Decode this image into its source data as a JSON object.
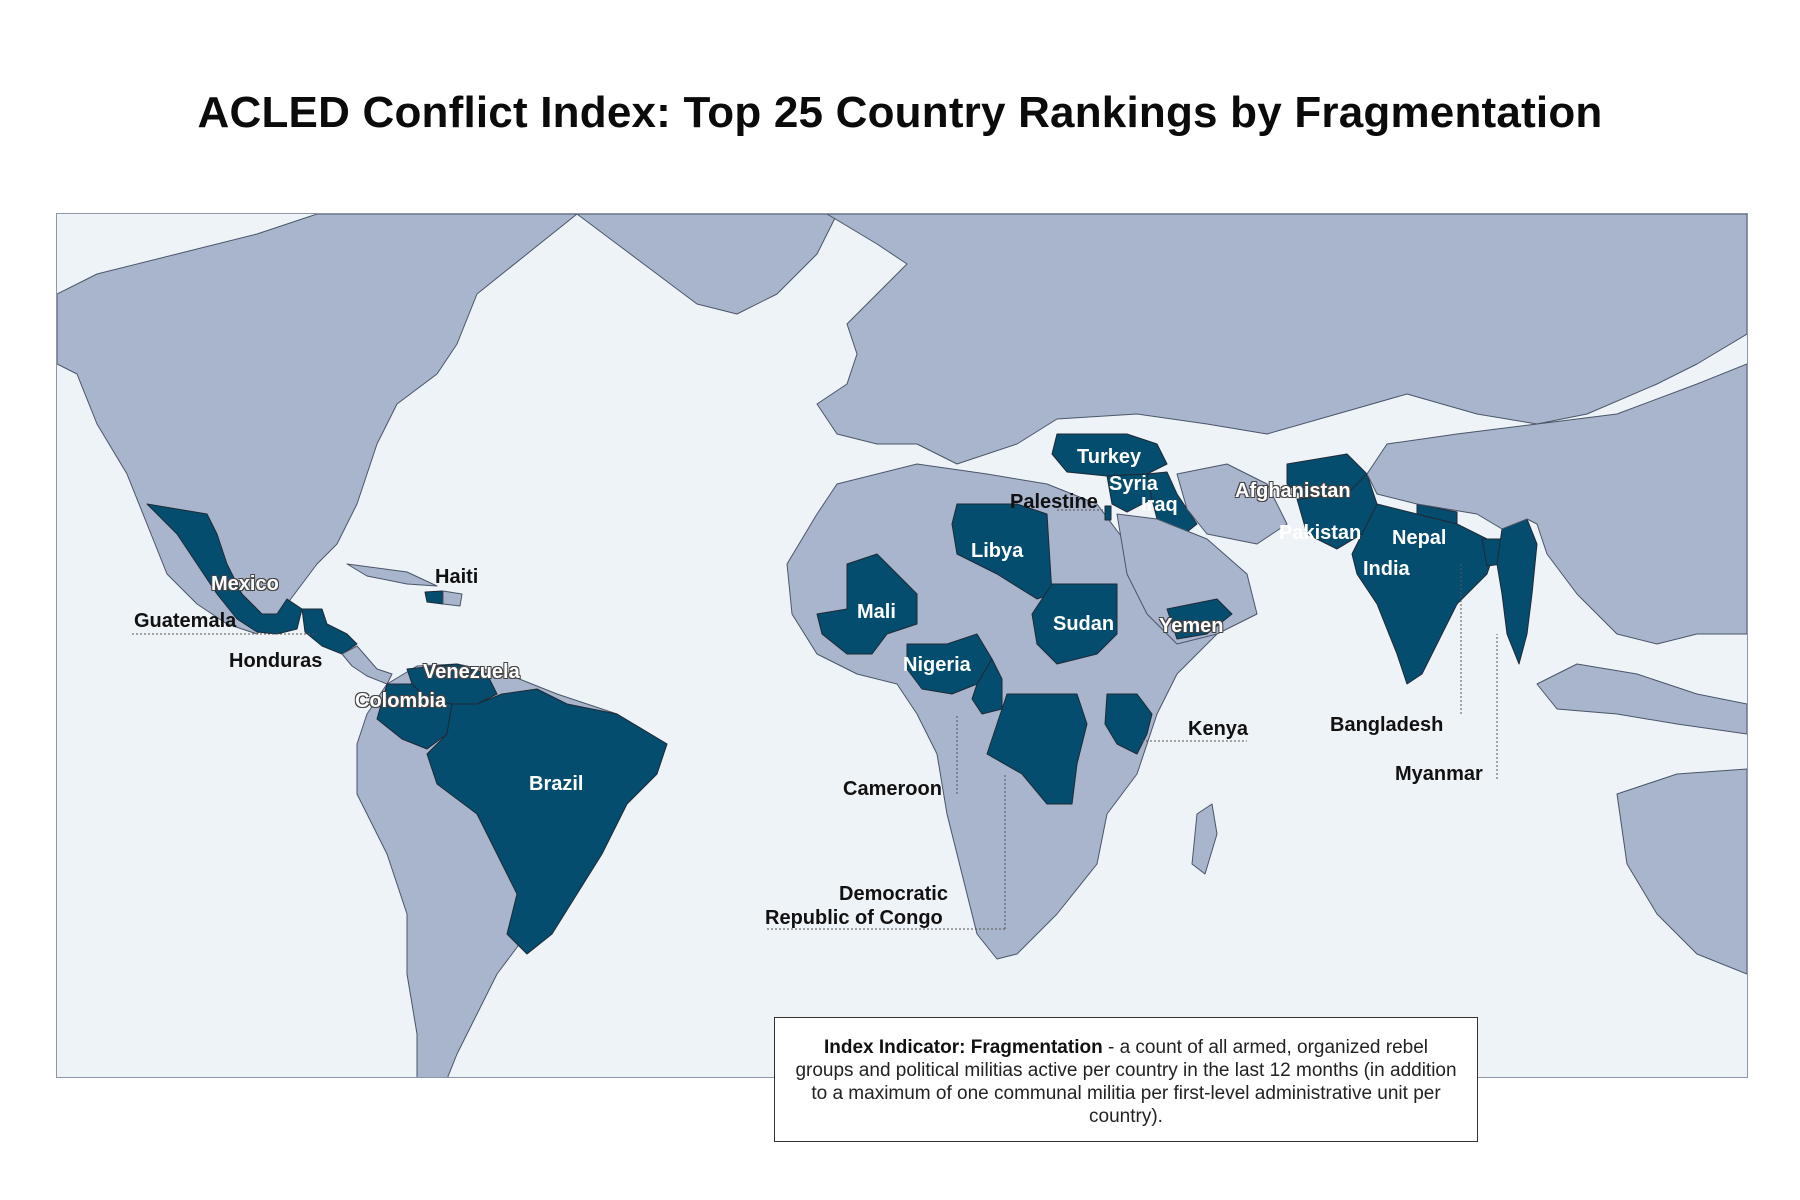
{
  "title": "ACLED Conflict Index: Top 25 Country Rankings by Fragmentation",
  "colors": {
    "ocean": "#eef3f8",
    "land": "#a8b5cc",
    "highlight": "#044d6e",
    "border": "#4a5568"
  },
  "highlighted_countries": [
    "Mexico",
    "Guatemala",
    "Honduras",
    "Haiti",
    "Venezuela",
    "Colombia",
    "Brazil",
    "Mali",
    "Libya",
    "Nigeria",
    "Cameroon",
    "Sudan",
    "Democratic Republic of Congo",
    "Kenya",
    "Turkey",
    "Syria",
    "Iraq",
    "Palestine",
    "Yemen",
    "Afghanistan",
    "Pakistan",
    "India",
    "Nepal",
    "Bangladesh",
    "Myanmar"
  ],
  "labels": {
    "mexico": "Mexico",
    "guatemala": "Guatemala",
    "honduras": "Honduras",
    "haiti": "Haiti",
    "venezuela": "Venezuela",
    "colombia": "Colombia",
    "brazil": "Brazil",
    "mali": "Mali",
    "libya": "Libya",
    "nigeria": "Nigeria",
    "cameroon": "Cameroon",
    "sudan": "Sudan",
    "drc_line1": "Democratic",
    "drc_line2": "Republic of Congo",
    "kenya": "Kenya",
    "turkey": "Turkey",
    "syria": "Syria",
    "iraq": "Iraq",
    "palestine": "Palestine",
    "yemen": "Yemen",
    "afghanistan": "Afghanistan",
    "pakistan": "Pakistan",
    "india": "India",
    "nepal": "Nepal",
    "bangladesh": "Bangladesh",
    "myanmar": "Myanmar"
  },
  "note": {
    "heading": "Index Indicator: Fragmentation",
    "text": " - a count of all armed, organized rebel groups and political militias active per country in the last 12 months (in addition to a maximum of one communal militia per first-level administrative unit per country)."
  }
}
